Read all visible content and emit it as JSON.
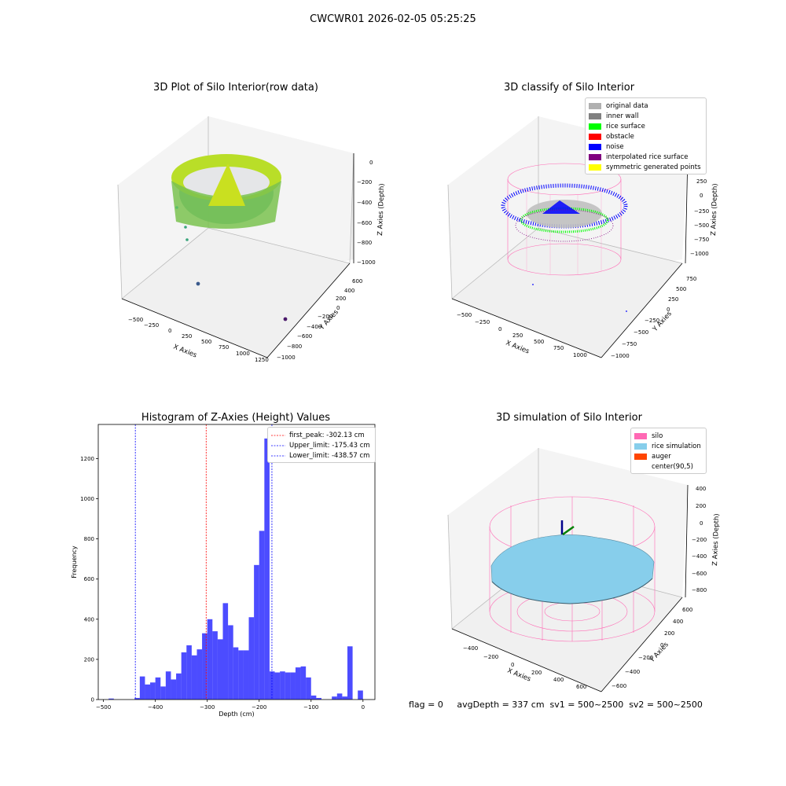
{
  "title": "CWCWR01 2026-02-05 05:25:25",
  "status_line": "flag = 0     avgDepth = 337 cm  sv1 = 500~2500  sv2 = 500~2500",
  "chart_data": [
    {
      "type": "scatter3d",
      "title": "3D Plot of Silo Interior(row data)",
      "xlabel": "X Axies",
      "ylabel": "Y Axies",
      "zlabel": "Z Axies (Depth)",
      "x_ticks": [
        "−500",
        "−250",
        "0",
        "250",
        "500",
        "750",
        "1000",
        "1250"
      ],
      "y_ticks": [
        "−1000",
        "−800",
        "−600",
        "−400",
        "−200",
        "0",
        "200",
        "400",
        "600"
      ],
      "z_ticks": [
        "−1000",
        "−800",
        "−600",
        "−400",
        "−200",
        "0"
      ],
      "colormap": "viridis"
    },
    {
      "type": "scatter3d",
      "title": "3D classify of Silo Interior",
      "xlabel": "X Axies",
      "ylabel": "Y Axies",
      "zlabel": "Z Axies (Depth)",
      "x_ticks": [
        "−500",
        "−250",
        "0",
        "250",
        "500",
        "750",
        "1000"
      ],
      "y_ticks": [
        "−1000",
        "−750",
        "−500",
        "−250",
        "0",
        "250",
        "500",
        "750"
      ],
      "z_ticks": [
        "−1000",
        "−750",
        "−500",
        "−250",
        "0",
        "250",
        "500"
      ],
      "legend": [
        {
          "label": "original data",
          "color": "#b0b0b0"
        },
        {
          "label": "inner wall",
          "color": "#808080"
        },
        {
          "label": "rice surface",
          "color": "#00ff00"
        },
        {
          "label": "obstacle",
          "color": "#ff0000"
        },
        {
          "label": "noise",
          "color": "#0000ff"
        },
        {
          "label": "interpolated rice surface",
          "color": "#800080"
        },
        {
          "label": "symmetric generated points",
          "color": "#ffff00"
        }
      ]
    },
    {
      "type": "bar",
      "title": "Histogram of Z-Axies (Height) Values",
      "xlabel": "Depth (cm)",
      "ylabel": "Frequency",
      "xlim": [
        -510,
        23
      ],
      "ylim": [
        0,
        1370
      ],
      "x_ticks": [
        -500,
        -400,
        -300,
        -200,
        -100,
        0
      ],
      "y_ticks": [
        0,
        200,
        400,
        600,
        800,
        1000,
        1200
      ],
      "bin_width": 10,
      "bar_color": "#0000ff",
      "bin_starts": [
        -490,
        -440,
        -430,
        -420,
        -410,
        -400,
        -390,
        -380,
        -370,
        -360,
        -350,
        -340,
        -330,
        -320,
        -310,
        -300,
        -290,
        -280,
        -270,
        -260,
        -250,
        -240,
        -230,
        -220,
        -210,
        -200,
        -190,
        -180,
        -170,
        -160,
        -150,
        -140,
        -130,
        -120,
        -110,
        -100,
        -90,
        -80,
        -70,
        -60,
        -50,
        -40,
        -30,
        -20,
        -10
      ],
      "values": [
        5,
        8,
        115,
        75,
        85,
        110,
        65,
        140,
        100,
        130,
        235,
        270,
        220,
        250,
        330,
        400,
        340,
        300,
        480,
        370,
        260,
        245,
        245,
        410,
        670,
        840,
        1300,
        140,
        135,
        140,
        135,
        135,
        160,
        165,
        110,
        20,
        8,
        0,
        0,
        15,
        30,
        15,
        265,
        0,
        45
      ],
      "vlines": [
        {
          "label": "first_peak: -302.13 cm",
          "x": -302.13,
          "color": "#ff0000"
        },
        {
          "label": "Upper_limit: -175.43 cm",
          "x": -175.43,
          "color": "#0000ff"
        },
        {
          "label": "Lower_limit: -438.57 cm",
          "x": -438.57,
          "color": "#0000ff"
        }
      ]
    },
    {
      "type": "surface3d",
      "title": "3D simulation of Silo Interior",
      "xlabel": "X Axies",
      "ylabel": "Y Axies",
      "zlabel": "Z Axies (Depth)",
      "x_ticks": [
        "−400",
        "−200",
        "0",
        "200",
        "400",
        "600"
      ],
      "y_ticks": [
        "−600",
        "−400",
        "−200",
        "0",
        "200",
        "400",
        "600"
      ],
      "z_ticks": [
        "−800",
        "−600",
        "−400",
        "−200",
        "0",
        "200",
        "400"
      ],
      "legend": [
        {
          "label": "silo",
          "color": "#ff69b4"
        },
        {
          "label": "rice simulation",
          "color": "#87ceeb"
        },
        {
          "label": "auger",
          "color": "#ff4500"
        },
        {
          "label": "center(90,5)",
          "color": "#ffffff"
        }
      ]
    }
  ]
}
